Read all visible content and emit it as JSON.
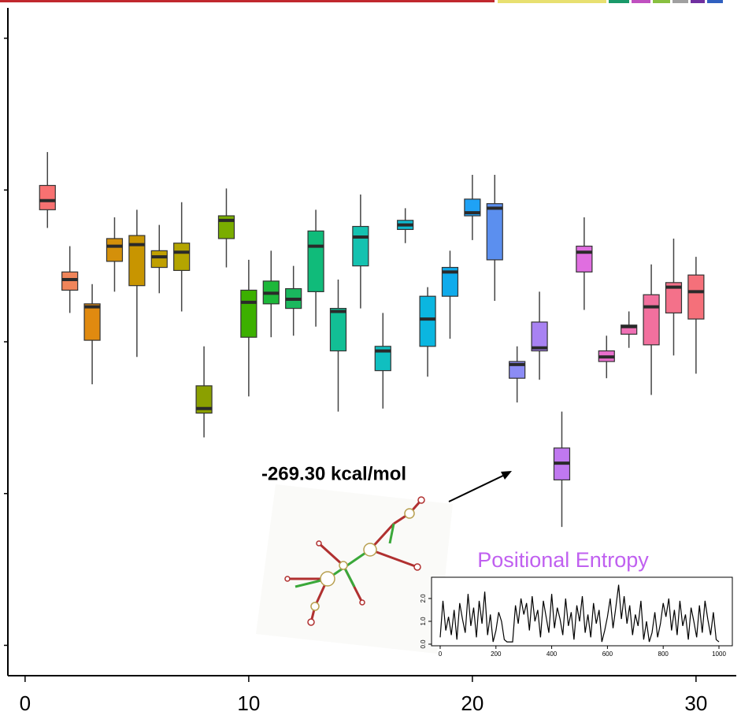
{
  "chart_data": [
    {
      "type": "box",
      "x": [
        1,
        2,
        3,
        4,
        5,
        6,
        7,
        8,
        9,
        10,
        11,
        12,
        13,
        14,
        15,
        16,
        17,
        18,
        19,
        20,
        21,
        22,
        23,
        24,
        25,
        26,
        27,
        28,
        29,
        30
      ],
      "max": [
        3.25,
        2.63,
        2.38,
        2.82,
        2.87,
        2.77,
        2.92,
        1.97,
        3.01,
        2.54,
        2.6,
        2.5,
        2.87,
        2.41,
        2.97,
        2.19,
        2.88,
        2.36,
        2.6,
        3.1,
        3.1,
        1.97,
        2.33,
        1.54,
        2.82,
        2.04,
        2.2,
        2.51,
        2.68,
        2.56
      ],
      "q3": [
        3.03,
        2.46,
        2.25,
        2.68,
        2.7,
        2.6,
        2.65,
        1.71,
        2.83,
        2.34,
        2.4,
        2.35,
        2.73,
        2.22,
        2.76,
        1.97,
        2.8,
        2.3,
        2.49,
        2.94,
        2.91,
        1.87,
        2.13,
        1.3,
        2.63,
        1.94,
        2.11,
        2.31,
        2.39,
        2.44
      ],
      "median": [
        2.93,
        2.41,
        2.23,
        2.63,
        2.64,
        2.56,
        2.59,
        1.56,
        2.8,
        2.26,
        2.32,
        2.28,
        2.63,
        2.2,
        2.69,
        1.94,
        2.77,
        2.15,
        2.46,
        2.85,
        2.88,
        1.85,
        1.96,
        1.2,
        2.59,
        1.9,
        2.1,
        2.23,
        2.36,
        2.33
      ],
      "q1": [
        2.87,
        2.34,
        2.01,
        2.53,
        2.37,
        2.49,
        2.47,
        1.53,
        2.68,
        2.03,
        2.25,
        2.22,
        2.33,
        1.94,
        2.5,
        1.81,
        2.74,
        1.97,
        2.3,
        2.83,
        2.54,
        1.76,
        1.94,
        1.09,
        2.46,
        1.87,
        2.05,
        1.98,
        2.19,
        2.15
      ],
      "min": [
        2.75,
        2.19,
        1.72,
        2.33,
        1.9,
        2.32,
        2.2,
        1.37,
        2.49,
        1.64,
        2.03,
        2.04,
        2.1,
        1.54,
        2.22,
        1.56,
        2.65,
        1.77,
        2.02,
        2.67,
        2.27,
        1.6,
        1.75,
        0.78,
        2.21,
        1.76,
        1.96,
        1.65,
        1.91,
        1.79
      ],
      "colors": [
        "#f87171",
        "#f0855a",
        "#e08a10",
        "#d4900a",
        "#c89500",
        "#c0a000",
        "#b4a500",
        "#8ba000",
        "#7aad00",
        "#3cb000",
        "#1db83a",
        "#1ab85e",
        "#10bb7a",
        "#12bf95",
        "#15c2b0",
        "#10bfc0",
        "#0ebbd0",
        "#0bb6e0",
        "#10abeb",
        "#1fa2f5",
        "#5b8fef",
        "#8c8cf5",
        "#a882f2",
        "#c078f0",
        "#e06ee0",
        "#e96fce",
        "#f070b5",
        "#f2709e",
        "#f4718a",
        "#f5707a"
      ],
      "xlim": [
        -0.77,
        31.8
      ],
      "xticks": [
        0,
        10,
        20,
        30
      ],
      "ylim": [
        -0.2,
        4.2
      ],
      "yticks": [
        0,
        1,
        2,
        3,
        4
      ],
      "annotation": "-269.30 kcal/mol"
    },
    {
      "type": "line",
      "title": "Positional Entropy",
      "color": "#000000",
      "title_color": "#c060f0",
      "x": [
        0,
        10,
        20,
        30,
        40,
        50,
        60,
        70,
        80,
        90,
        100,
        110,
        120,
        130,
        140,
        150,
        160,
        170,
        180,
        190,
        200,
        210,
        220,
        230,
        240,
        250,
        260,
        270,
        280,
        290,
        300,
        310,
        320,
        330,
        340,
        350,
        360,
        370,
        380,
        390,
        400,
        410,
        420,
        430,
        440,
        450,
        460,
        470,
        480,
        490,
        500,
        510,
        520,
        530,
        540,
        550,
        560,
        570,
        580,
        590,
        600,
        610,
        620,
        630,
        640,
        650,
        660,
        670,
        680,
        690,
        700,
        710,
        720,
        730,
        740,
        750,
        760,
        770,
        780,
        790,
        800,
        810,
        820,
        830,
        840,
        850,
        860,
        870,
        880,
        890,
        900,
        910,
        920,
        930,
        940,
        950,
        960,
        970,
        980,
        990,
        1000
      ],
      "values": [
        0.3,
        1.9,
        0.6,
        1.2,
        0.4,
        1.5,
        0.2,
        1.8,
        1.1,
        0.5,
        2.2,
        0.8,
        1.6,
        0.3,
        1.9,
        0.9,
        2.3,
        0.4,
        1.3,
        0.1,
        0.6,
        1.4,
        1.0,
        0.2,
        0.1,
        0.1,
        0.1,
        1.7,
        0.9,
        2.0,
        1.3,
        1.8,
        0.6,
        2.1,
        1.0,
        1.5,
        0.3,
        1.9,
        1.2,
        0.5,
        2.2,
        0.7,
        1.6,
        1.1,
        0.4,
        2.0,
        0.8,
        1.4,
        0.2,
        1.7,
        1.0,
        2.1,
        0.5,
        1.3,
        0.3,
        1.8,
        0.9,
        1.5,
        0.1,
        0.6,
        1.2,
        2.0,
        0.7,
        1.6,
        2.6,
        1.1,
        2.1,
        0.9,
        1.7,
        0.4,
        1.3,
        0.8,
        1.9,
        0.2,
        1.0,
        0.1,
        0.5,
        1.4,
        0.3,
        0.9,
        1.8,
        1.2,
        2.0,
        0.6,
        1.5,
        0.4,
        1.9,
        0.8,
        1.3,
        0.2,
        1.6,
        1.0,
        0.3,
        1.7,
        0.5,
        1.9,
        1.1,
        0.4,
        1.4,
        0.2,
        0.1
      ],
      "xlim": [
        -31,
        1048
      ],
      "xticks": [
        0,
        200,
        400,
        600,
        800,
        1000
      ],
      "ylim": [
        -0.07,
        2.93
      ],
      "yticks": [
        {
          "value": 0,
          "label": "0.0"
        },
        {
          "value": 1,
          "label": "1.0"
        },
        {
          "value": 2,
          "label": "2.0"
        }
      ]
    }
  ]
}
